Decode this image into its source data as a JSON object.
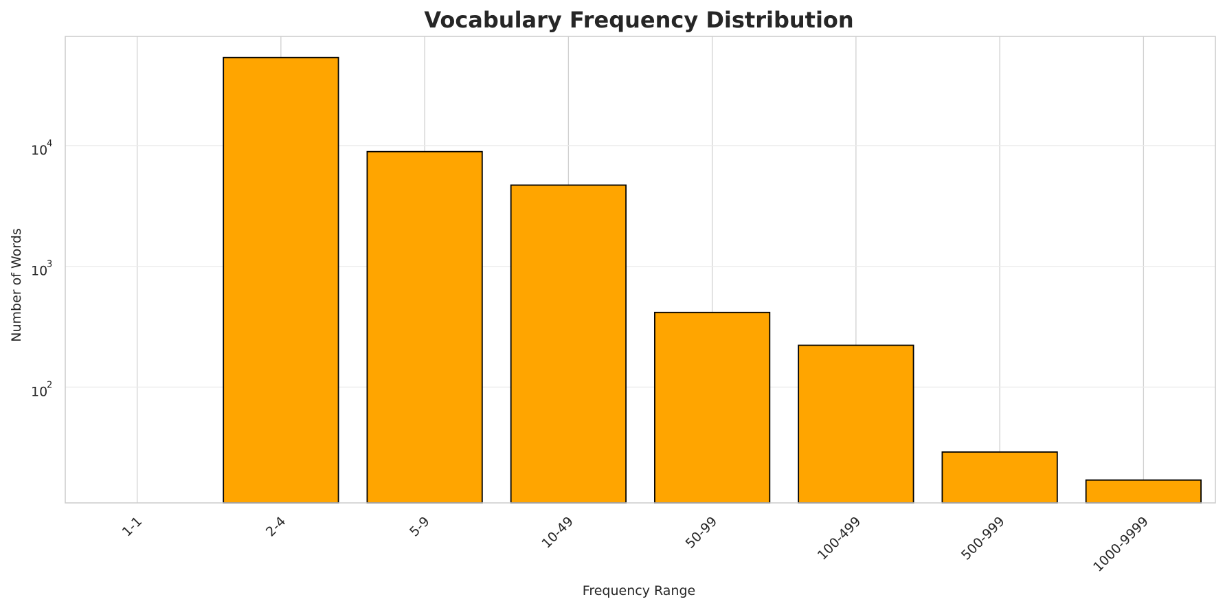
{
  "chart_data": {
    "type": "bar",
    "title": "Vocabulary Frequency Distribution",
    "xlabel": "Frequency Range",
    "ylabel": "Number of Words",
    "yscale": "log",
    "ylim": [
      11,
      80000
    ],
    "categories": [
      "1-1",
      "2-4",
      "5-9",
      "10-49",
      "50-99",
      "100-499",
      "500-999",
      "1000-9999"
    ],
    "values": [
      0,
      53500,
      8900,
      4700,
      415,
      222,
      29,
      17
    ],
    "yticks": [
      {
        "base": "10",
        "exp": "2",
        "value": 100
      },
      {
        "base": "10",
        "exp": "3",
        "value": 1000
      },
      {
        "base": "10",
        "exp": "4",
        "value": 10000
      }
    ],
    "bar_color": "#FFA500",
    "bar_edge_color": "#000000",
    "grid": true,
    "x_tick_rotation": -45
  }
}
